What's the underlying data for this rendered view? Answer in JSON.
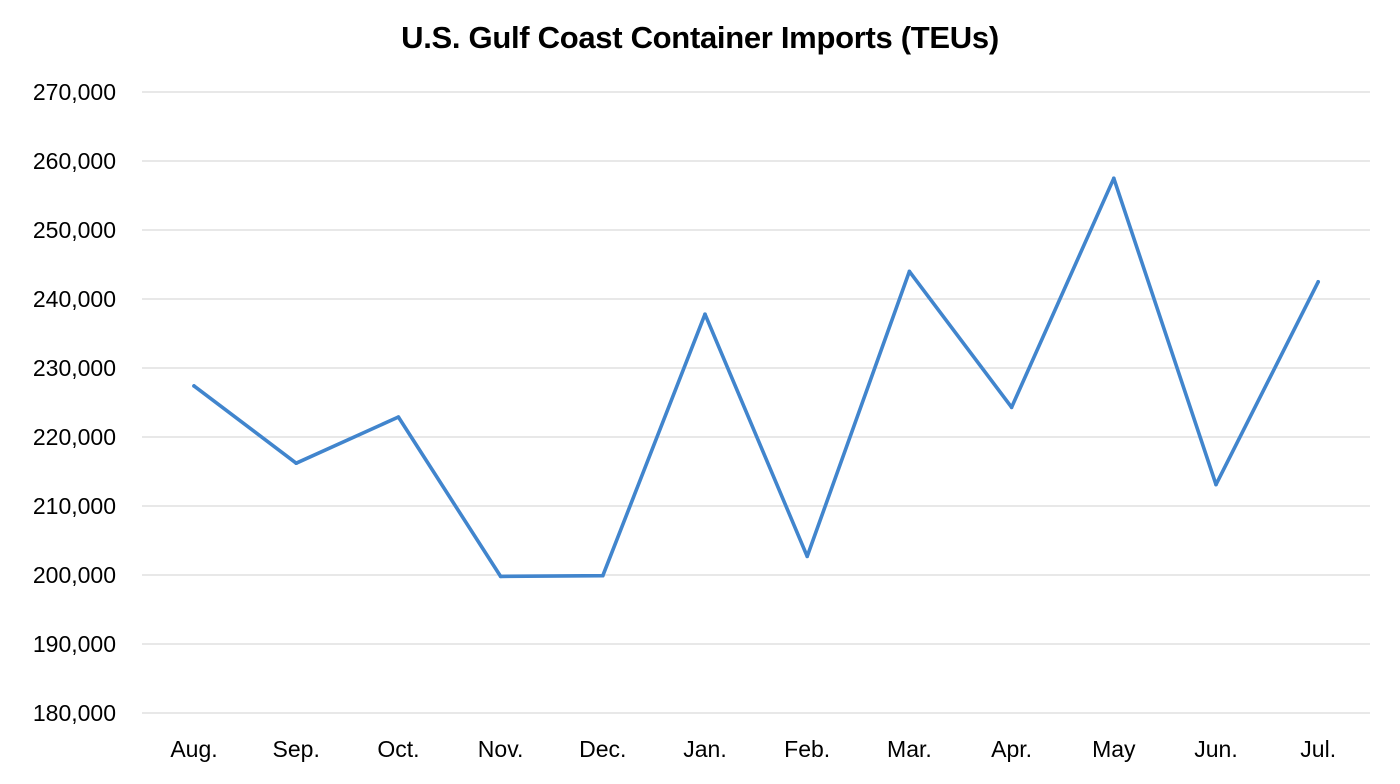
{
  "chart_data": {
    "type": "line",
    "title": "U.S. Gulf Coast Container Imports (TEUs)",
    "xlabel": "",
    "ylabel": "",
    "categories": [
      "Aug.",
      "Sep.",
      "Oct.",
      "Nov.",
      "Dec.",
      "Jan.",
      "Feb.",
      "Mar.",
      "Apr.",
      "May",
      "Jun.",
      "Jul."
    ],
    "series": [
      {
        "values": [
          227400,
          216200,
          222900,
          199800,
          199900,
          237800,
          202700,
          244000,
          224300,
          257500,
          213100,
          242500
        ]
      }
    ],
    "ylim": [
      180000,
      270000
    ],
    "yticks": [
      180000,
      190000,
      200000,
      210000,
      220000,
      230000,
      240000,
      250000,
      260000,
      270000
    ],
    "ytick_labels": [
      "180,000",
      "190,000",
      "200,000",
      "210,000",
      "220,000",
      "230,000",
      "240,000",
      "250,000",
      "260,000",
      "270,000"
    ],
    "grid": "horizontal",
    "legend": "none",
    "colors": {
      "line": "#4185cd",
      "grid": "#d9d9d9",
      "text": "#000000"
    }
  }
}
